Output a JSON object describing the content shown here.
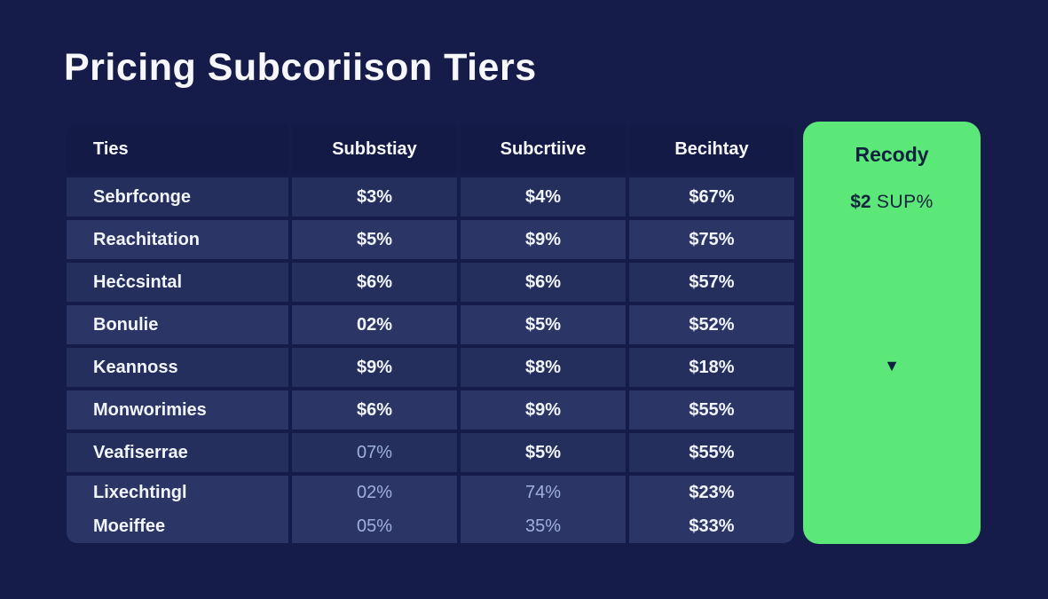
{
  "title": "Pricing Subcoriison Tiers",
  "colors": {
    "background": "#151c49",
    "header_cell": "#121a45",
    "row_dark": "#242f5d",
    "row_light": "#2b3667",
    "accent_green": "#5ce878",
    "text_white": "#f2f5fd",
    "text_dim": "#9fb0dc",
    "text_on_green": "#10203f"
  },
  "table": {
    "headers": [
      "Ties",
      "Subbstiay",
      "Subcrtiive",
      "Becihtay"
    ],
    "rows": [
      {
        "name": "Sebrfconge",
        "values": [
          {
            "text": "$3%",
            "dim": false
          },
          {
            "text": "$4%",
            "dim": false
          },
          {
            "text": "$67%",
            "dim": false
          }
        ]
      },
      {
        "name": "Reachitation",
        "values": [
          {
            "text": "$5%",
            "dim": false
          },
          {
            "text": "$9%",
            "dim": false
          },
          {
            "text": "$75%",
            "dim": false
          }
        ]
      },
      {
        "name": "Heċcsintal",
        "values": [
          {
            "text": "$6%",
            "dim": false
          },
          {
            "text": "$6%",
            "dim": false
          },
          {
            "text": "$57%",
            "dim": false
          }
        ]
      },
      {
        "name": "Bonulie",
        "values": [
          {
            "text": "02%",
            "dim": false
          },
          {
            "text": "$5%",
            "dim": false
          },
          {
            "text": "$52%",
            "dim": false
          }
        ]
      },
      {
        "name": "Keannoss",
        "values": [
          {
            "text": "$9%",
            "dim": false
          },
          {
            "text": "$8%",
            "dim": false
          },
          {
            "text": "$18%",
            "dim": false
          }
        ]
      },
      {
        "name": "Monworimies",
        "values": [
          {
            "text": "$6%",
            "dim": false
          },
          {
            "text": "$9%",
            "dim": false
          },
          {
            "text": "$55%",
            "dim": false
          }
        ]
      },
      {
        "name": "Veafiserrae",
        "values": [
          {
            "text": "07%",
            "dim": true
          },
          {
            "text": "$5%",
            "dim": false
          },
          {
            "text": "$55%",
            "dim": false
          }
        ]
      },
      {
        "name": "Lixechtingl",
        "values": [
          {
            "text": "02%",
            "dim": true
          },
          {
            "text": "74%",
            "dim": true
          },
          {
            "text": "$23%",
            "dim": false
          }
        ]
      },
      {
        "name": "Moeiffee",
        "values": [
          {
            "text": "05%",
            "dim": true
          },
          {
            "text": "35%",
            "dim": true
          },
          {
            "text": "$33%",
            "dim": false
          }
        ]
      }
    ]
  },
  "highlight_card": {
    "header": "Recody",
    "price_bold": "$2",
    "price_rest": " SUP%",
    "chevron_glyph": "▼"
  }
}
